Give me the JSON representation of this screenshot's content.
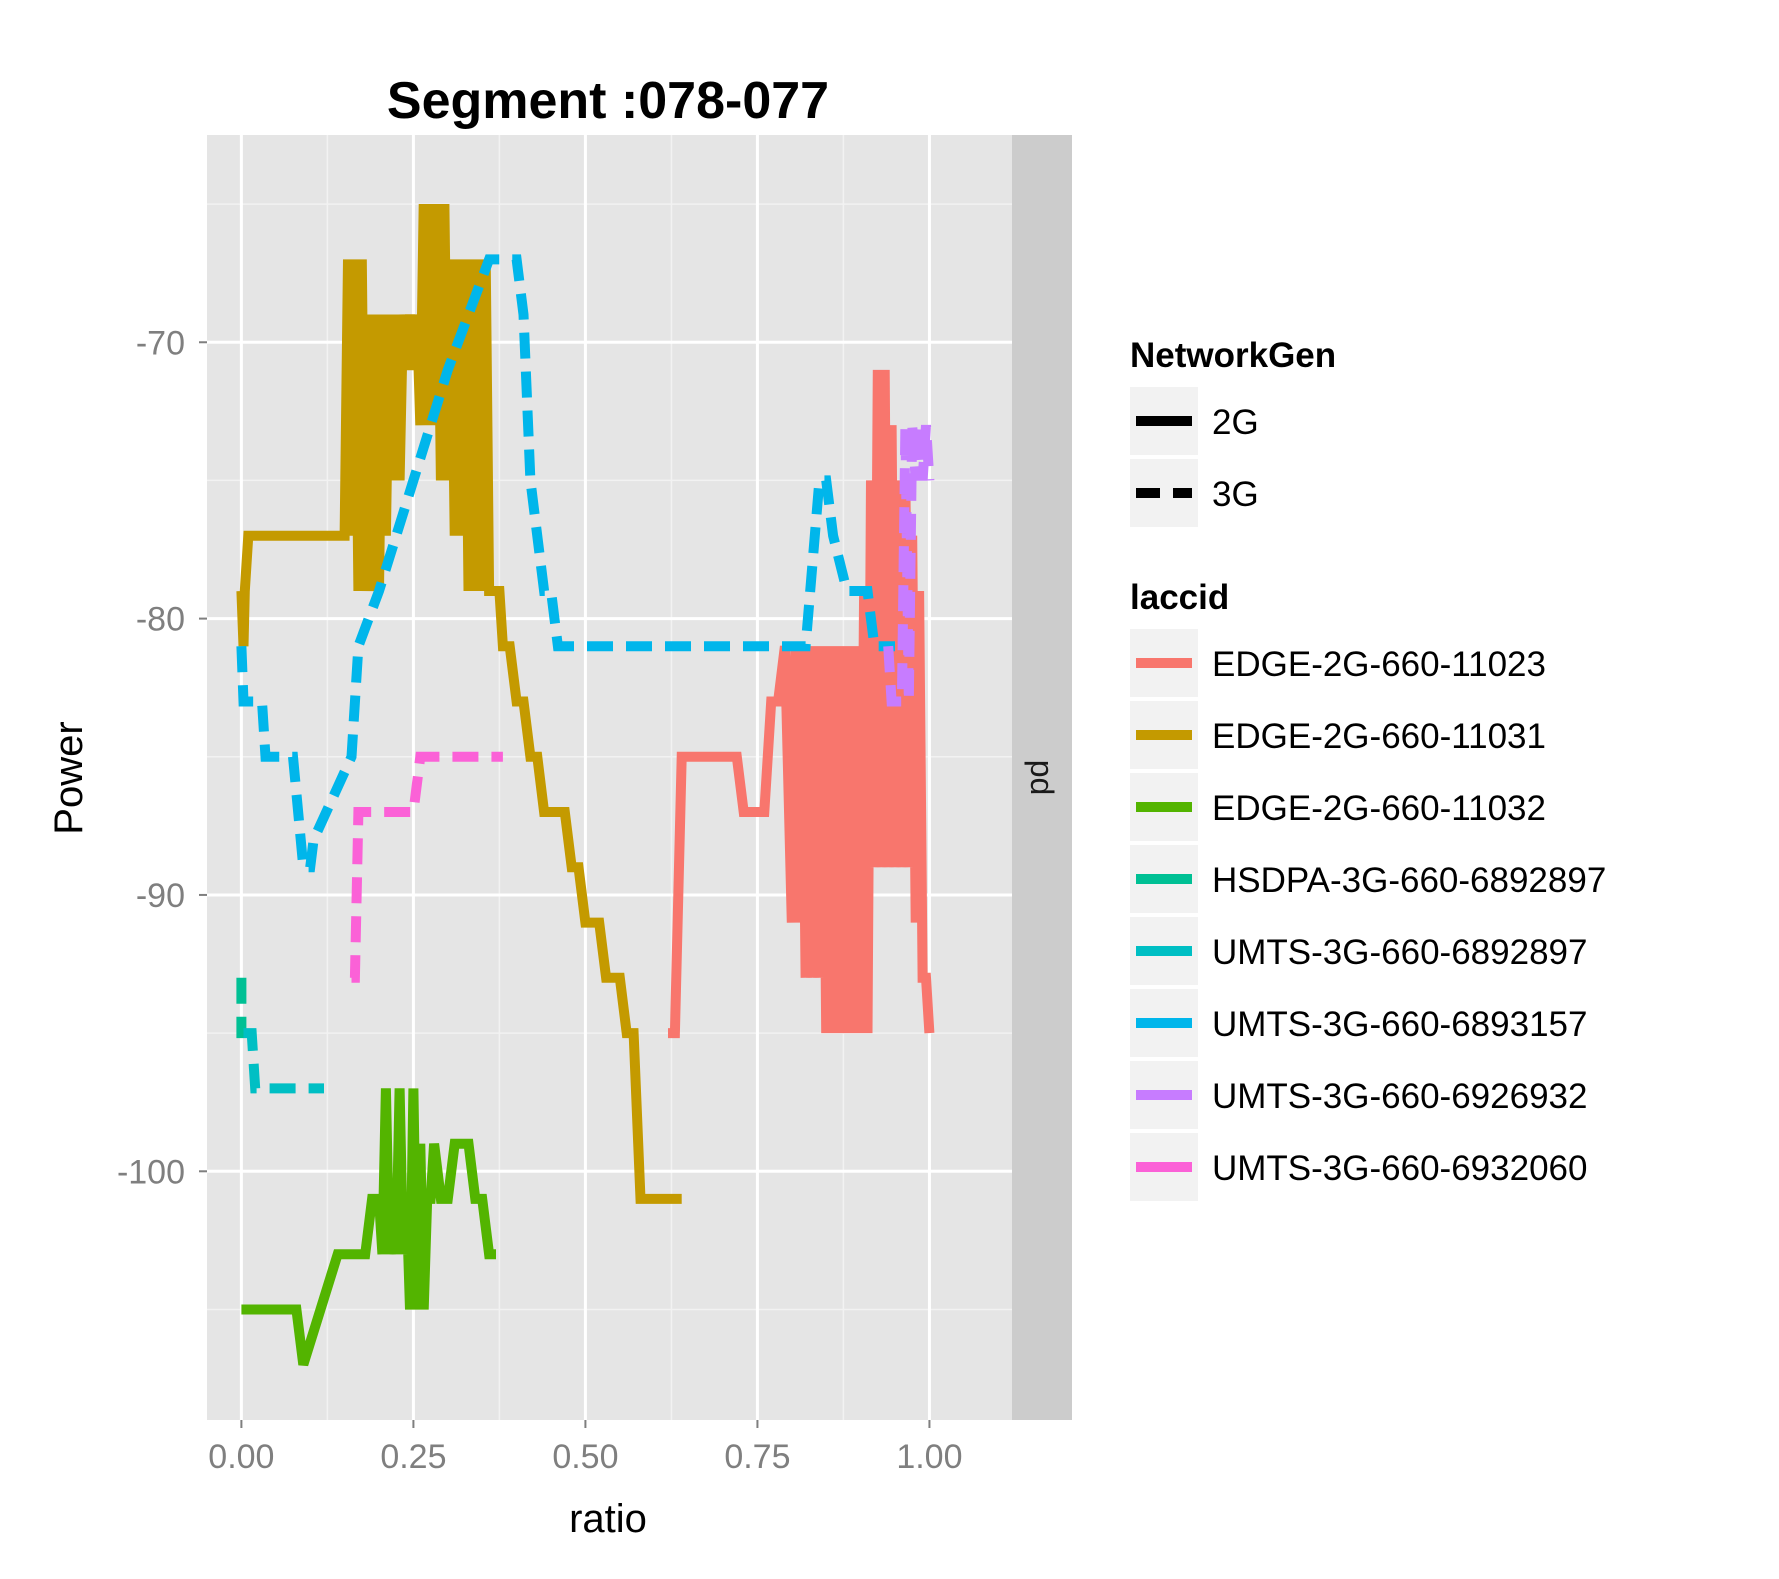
{
  "chart_data": {
    "type": "line",
    "title": "Segment :078-077",
    "xlabel": "ratio",
    "ylabel": "Power",
    "facet_label": "pd",
    "xlim": [
      -0.05,
      1.12
    ],
    "ylim": [
      -109,
      -62.5
    ],
    "x_ticks": [
      0.0,
      0.25,
      0.5,
      0.75,
      1.0
    ],
    "x_tick_labels": [
      "0.00",
      "0.25",
      "0.50",
      "0.75",
      "1.00"
    ],
    "y_ticks": [
      -70,
      -80,
      -90,
      -100
    ],
    "y_tick_labels": [
      "-70",
      "-80",
      "-90",
      "-100"
    ],
    "grid": true,
    "legend_placement": "right",
    "linetype_legend": {
      "title": "NetworkGen",
      "entries": [
        {
          "label": "2G",
          "linetype": "solid"
        },
        {
          "label": "3G",
          "linetype": "dashed"
        }
      ]
    },
    "color_legend_title": "laccid",
    "series": [
      {
        "name": "EDGE-2G-660-11023",
        "color": "#F8766D",
        "linetype": "solid",
        "x": [
          0.62,
          0.63,
          0.64,
          0.66,
          0.72,
          0.73,
          0.76,
          0.77,
          0.78,
          0.79,
          0.8,
          0.805,
          0.81,
          0.815,
          0.82,
          0.825,
          0.83,
          0.835,
          0.84,
          0.845,
          0.85,
          0.855,
          0.86,
          0.865,
          0.87,
          0.875,
          0.88,
          0.885,
          0.89,
          0.895,
          0.9,
          0.905,
          0.91,
          0.915,
          0.92,
          0.925,
          0.93,
          0.935,
          0.94,
          0.945,
          0.95,
          0.955,
          0.96,
          0.965,
          0.97,
          0.975,
          0.98,
          0.985,
          0.99,
          0.995,
          1.0
        ],
        "y": [
          -95,
          -95,
          -85,
          -85,
          -85,
          -87,
          -87,
          -83,
          -83,
          -81,
          -91,
          -81,
          -91,
          -81,
          -93,
          -81,
          -93,
          -81,
          -93,
          -81,
          -95,
          -81,
          -95,
          -81,
          -95,
          -81,
          -95,
          -81,
          -95,
          -81,
          -95,
          -79,
          -95,
          -75,
          -89,
          -71,
          -89,
          -71,
          -89,
          -73,
          -89,
          -75,
          -89,
          -75,
          -89,
          -77,
          -91,
          -79,
          -93,
          -93,
          -95
        ]
      },
      {
        "name": "EDGE-2G-660-11031",
        "color": "#C49A00",
        "linetype": "solid",
        "x": [
          0.0,
          0.003,
          0.005,
          0.01,
          0.1,
          0.15,
          0.155,
          0.16,
          0.165,
          0.17,
          0.175,
          0.18,
          0.185,
          0.19,
          0.195,
          0.2,
          0.205,
          0.21,
          0.215,
          0.22,
          0.225,
          0.23,
          0.235,
          0.24,
          0.245,
          0.25,
          0.255,
          0.26,
          0.265,
          0.27,
          0.275,
          0.28,
          0.285,
          0.29,
          0.295,
          0.3,
          0.305,
          0.31,
          0.315,
          0.32,
          0.325,
          0.33,
          0.335,
          0.34,
          0.345,
          0.35,
          0.355,
          0.36,
          0.365,
          0.37,
          0.375,
          0.38,
          0.39,
          0.4,
          0.41,
          0.42,
          0.43,
          0.44,
          0.45,
          0.46,
          0.47,
          0.48,
          0.49,
          0.5,
          0.52,
          0.53,
          0.54,
          0.55,
          0.56,
          0.57,
          0.58,
          0.59,
          0.6,
          0.605,
          0.61,
          0.62,
          0.63,
          0.64
        ],
        "y": [
          -79,
          -81,
          -79,
          -77,
          -77,
          -77,
          -67,
          -77,
          -67,
          -79,
          -67,
          -79,
          -69,
          -79,
          -69,
          -79,
          -69,
          -77,
          -69,
          -75,
          -69,
          -75,
          -69,
          -71,
          -69,
          -71,
          -69,
          -73,
          -65,
          -73,
          -65,
          -73,
          -65,
          -75,
          -65,
          -75,
          -67,
          -77,
          -67,
          -77,
          -67,
          -79,
          -67,
          -79,
          -67,
          -79,
          -67,
          -79,
          -79,
          -79,
          -79,
          -81,
          -81,
          -83,
          -83,
          -85,
          -85,
          -87,
          -87,
          -87,
          -87,
          -89,
          -89,
          -91,
          -91,
          -93,
          -93,
          -93,
          -95,
          -95,
          -101,
          -101,
          -101,
          -101,
          -101,
          -101,
          -101,
          -101
        ]
      },
      {
        "name": "EDGE-2G-660-11032",
        "color": "#53B400",
        "linetype": "solid",
        "x": [
          0.0,
          0.07,
          0.08,
          0.09,
          0.14,
          0.15,
          0.18,
          0.19,
          0.2,
          0.205,
          0.21,
          0.215,
          0.22,
          0.225,
          0.23,
          0.235,
          0.24,
          0.245,
          0.25,
          0.255,
          0.26,
          0.265,
          0.27,
          0.275,
          0.28,
          0.29,
          0.3,
          0.31,
          0.32,
          0.33,
          0.34,
          0.35,
          0.36,
          0.37
        ],
        "y": [
          -105,
          -105,
          -105,
          -107,
          -103,
          -103,
          -103,
          -101,
          -101,
          -103,
          -97,
          -103,
          -101,
          -103,
          -97,
          -103,
          -101,
          -105,
          -97,
          -105,
          -99,
          -105,
          -101,
          -101,
          -99,
          -101,
          -101,
          -99,
          -99,
          -99,
          -101,
          -101,
          -103,
          -103
        ]
      },
      {
        "name": "HSDPA-3G-660-6892897",
        "color": "#00C094",
        "linetype": "dashed",
        "x": [
          0.0,
          0.0,
          0.003
        ],
        "y": [
          -93,
          -95,
          -95
        ]
      },
      {
        "name": "UMTS-3G-660-6892897",
        "color": "#00BFC4",
        "linetype": "dashed",
        "x": [
          0.003,
          0.015,
          0.02,
          0.03,
          0.06,
          0.09,
          0.12
        ],
        "y": [
          -95,
          -95,
          -97,
          -97,
          -97,
          -97,
          -97
        ]
      },
      {
        "name": "UMTS-3G-660-6893157",
        "color": "#00B6EB",
        "linetype": "dashed",
        "x": [
          0.0,
          0.003,
          0.03,
          0.035,
          0.07,
          0.075,
          0.09,
          0.1,
          0.105,
          0.16,
          0.17,
          0.2,
          0.25,
          0.3,
          0.36,
          0.38,
          0.39,
          0.4,
          0.41,
          0.42,
          0.44,
          0.45,
          0.46,
          0.5,
          0.6,
          0.7,
          0.8,
          0.82,
          0.84,
          0.85,
          0.86,
          0.88,
          0.9,
          0.91,
          0.92,
          0.93,
          0.94,
          0.95
        ],
        "y": [
          -81,
          -83,
          -83,
          -85,
          -85,
          -85,
          -89,
          -89,
          -88,
          -85,
          -81,
          -79,
          -75,
          -71,
          -67,
          -67,
          -67,
          -67,
          -69,
          -75,
          -79,
          -79,
          -81,
          -81,
          -81,
          -81,
          -81,
          -81,
          -75,
          -75,
          -77,
          -79,
          -79,
          -79,
          -81,
          -81,
          -81,
          -81
        ]
      },
      {
        "name": "UMTS-3G-660-6926932",
        "color": "#C77CFF",
        "linetype": "dashed",
        "x": [
          0.94,
          0.945,
          0.95,
          0.96,
          0.965,
          0.97,
          0.975,
          0.98,
          0.985,
          0.99,
          0.995,
          1.0
        ],
        "y": [
          -81,
          -83,
          -83,
          -83,
          -73,
          -83,
          -73,
          -75,
          -73,
          -75,
          -73,
          -75
        ]
      },
      {
        "name": "UMTS-3G-660-6932060",
        "color": "#FB61D7",
        "linetype": "dashed",
        "x": [
          0.16,
          0.165,
          0.17,
          0.175,
          0.18,
          0.2,
          0.22,
          0.25,
          0.26,
          0.27,
          0.28,
          0.3,
          0.35,
          0.38
        ],
        "y": [
          -93,
          -93,
          -87,
          -87,
          -87,
          -87,
          -87,
          -87,
          -85,
          -85,
          -85,
          -85,
          -85,
          -85
        ]
      }
    ]
  }
}
